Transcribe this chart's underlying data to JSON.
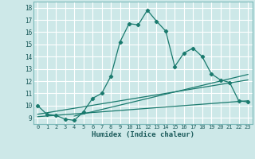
{
  "xlabel": "Humidex (Indice chaleur)",
  "background_color": "#cde8e8",
  "grid_color": "#b0d8d8",
  "line_color": "#1a7a6e",
  "xlim": [
    -0.5,
    23.5
  ],
  "ylim": [
    8.5,
    18.5
  ],
  "xticks": [
    0,
    1,
    2,
    3,
    4,
    5,
    6,
    7,
    8,
    9,
    10,
    11,
    12,
    13,
    14,
    15,
    16,
    17,
    18,
    19,
    20,
    21,
    22,
    23
  ],
  "yticks": [
    9,
    10,
    11,
    12,
    13,
    14,
    15,
    16,
    17,
    18
  ],
  "line1_x": [
    0,
    1,
    2,
    3,
    4,
    5,
    6,
    7,
    8,
    9,
    10,
    11,
    12,
    13,
    14,
    15,
    16,
    17,
    18,
    19,
    20,
    21,
    22,
    23
  ],
  "line1_y": [
    10.0,
    9.3,
    9.2,
    8.9,
    8.8,
    9.5,
    10.6,
    11.0,
    12.4,
    15.2,
    16.7,
    16.6,
    17.8,
    16.9,
    16.1,
    13.2,
    14.3,
    14.7,
    14.0,
    12.6,
    12.1,
    11.9,
    10.4,
    10.3
  ],
  "line2_x": [
    0,
    23
  ],
  "line2_y": [
    9.1,
    10.4
  ],
  "line3_x": [
    0,
    23
  ],
  "line3_y": [
    9.3,
    12.1
  ],
  "line4_x": [
    4,
    23
  ],
  "line4_y": [
    9.15,
    12.55
  ]
}
